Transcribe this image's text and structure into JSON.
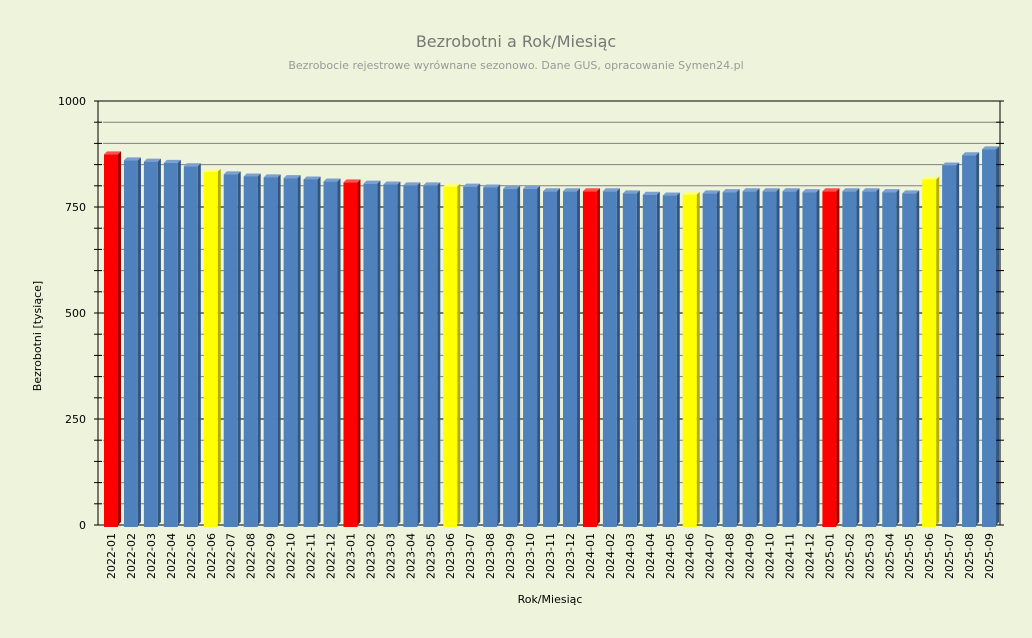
{
  "chart_data": {
    "type": "bar",
    "title": "Bezrobotni a Rok/Miesiąc",
    "subtitle": "Bezrobocie rejestrowe wyrównane sezonowo. Dane GUS, opracowanie Symen24.pl",
    "xlabel": "Rok/Miesiąc",
    "ylabel": "Bezrobotni [tysiące]",
    "ylim": [
      0,
      1000
    ],
    "yticks": [
      "0",
      "250",
      "500",
      "750",
      "1000"
    ],
    "grid": true,
    "colors": {
      "default": "#4F81BD",
      "january": "#FF0000",
      "june": "#FFFF00"
    },
    "categories": [
      "2022-01",
      "2022-02",
      "2022-03",
      "2022-04",
      "2022-05",
      "2022-06",
      "2022-07",
      "2022-08",
      "2022-09",
      "2022-10",
      "2022-11",
      "2022-12",
      "2023-01",
      "2023-02",
      "2023-03",
      "2023-04",
      "2023-05",
      "2023-06",
      "2023-07",
      "2023-08",
      "2023-09",
      "2023-10",
      "2023-11",
      "2023-12",
      "2024-01",
      "2024-02",
      "2024-03",
      "2024-04",
      "2024-05",
      "2024-06",
      "2024-07",
      "2024-08",
      "2024-09",
      "2024-10",
      "2024-11",
      "2024-12",
      "2025-01",
      "2025-02",
      "2025-03",
      "2025-04",
      "2025-05",
      "2025-06",
      "2025-07",
      "2025-08",
      "2025-09"
    ],
    "values": [
      874,
      860,
      857,
      854,
      846,
      833,
      827,
      822,
      820,
      818,
      815,
      810,
      808,
      805,
      803,
      801,
      801,
      798,
      798,
      796,
      793,
      793,
      787,
      787,
      787,
      787,
      782,
      779,
      777,
      779,
      782,
      785,
      787,
      787,
      787,
      785,
      787,
      787,
      787,
      785,
      782,
      815,
      848,
      872,
      886
    ]
  }
}
